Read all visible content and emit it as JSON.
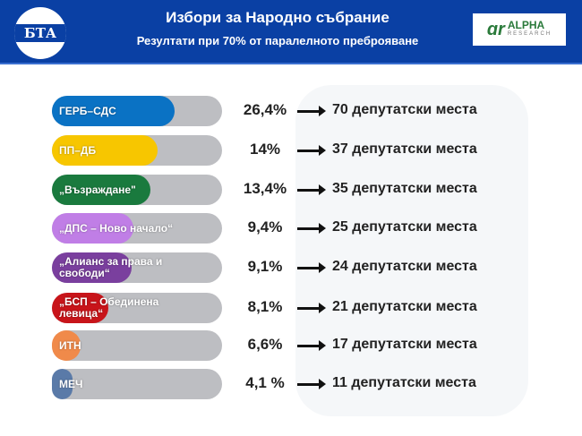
{
  "header": {
    "logo_text": "БТА",
    "title": "Избори за Народно събрание",
    "subtitle": "Резултати при 70% от паралелното преброяване",
    "partner_logo": "ALPHA",
    "partner_logo_sub": "RESEARCH"
  },
  "parties": [
    {
      "name": "ГЕРБ–СДС",
      "percent": "26,4%",
      "seats": "70 депутатски места",
      "color": "#0a72c4",
      "bar_fill": 0.72
    },
    {
      "name": "ПП–ДБ",
      "percent": "14%",
      "seats": "37 депутатски места",
      "color": "#f7c600",
      "bar_fill": 0.62
    },
    {
      "name": "„Възраждане\"",
      "percent": "13,4%",
      "seats": "35 депутатски места",
      "color": "#1a7a3e",
      "bar_fill": 0.58
    },
    {
      "name": "„ДПС – Ново начало“",
      "percent": "9,4%",
      "seats": "25 депутатски места",
      "color": "#c07ee6",
      "bar_fill": 0.48
    },
    {
      "name": "„Алианс за права и свободи“",
      "percent": "9,1%",
      "seats": "24 депутатски места",
      "color": "#7a3f9e",
      "bar_fill": 0.47
    },
    {
      "name": "„БСП – Обединена левица“",
      "percent": "8,1%",
      "seats": "21 депутатски места",
      "color": "#c8141a",
      "bar_fill": 0.33
    },
    {
      "name": "ИТН",
      "percent": "6,6%",
      "seats": "17 депутатски места",
      "color": "#f08a4a",
      "bar_fill": 0.17
    },
    {
      "name": "МЕЧ",
      "percent": "4,1 %",
      "seats": "11 депутатски места",
      "color": "#5a7aa8",
      "bar_fill": 0.12
    }
  ]
}
